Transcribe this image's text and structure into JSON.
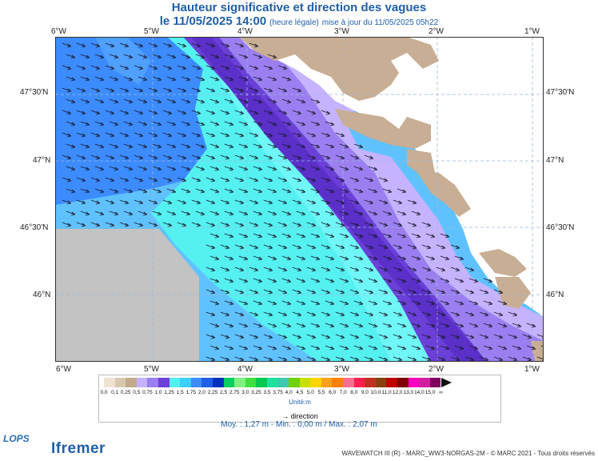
{
  "header": {
    "title": "Hauteur significative et direction des vagues",
    "date": "le 11/05/2025 14:00",
    "legal": "(heure légale)",
    "update": "mise à jour du 11/05/2025 05h22"
  },
  "axes": {
    "lon_labels": [
      "6°W",
      "5°W",
      "4°W",
      "3°W",
      "2°W",
      "1°W"
    ],
    "lat_labels": [
      "47°30'N",
      "47°N",
      "46°30'N",
      "46°N"
    ]
  },
  "map_data": {
    "type": "heatmap",
    "variable": "significant wave height",
    "lon_range": [
      -6,
      -1
    ],
    "lat_range": [
      45.5,
      47.85
    ],
    "min_m": 0.0,
    "max_m": 2.07,
    "mean_m": 1.27,
    "wave_direction": "from west-northwest",
    "bands_offshore_to_coast": [
      "1,75-2,0",
      "1,5-1,75",
      "1,25-1,5",
      "1,0-1,25",
      "0,75-1,0",
      "0,5-0,75"
    ],
    "no_data_region": "south-west corner"
  },
  "legend": {
    "stops": [
      "0,0",
      "0,1",
      "0,25",
      "0,5",
      "0,75",
      "1,0",
      "1,25",
      "1,5",
      "1,75",
      "2,0",
      "2,25",
      "2,5",
      "2,75",
      "3,0",
      "3,25",
      "3,5",
      "3,75",
      "4,0",
      "4,5",
      "5,0",
      "5,5",
      "6,0",
      "7,0",
      "8,0",
      "9,0",
      "10,0",
      "11,0",
      "12,0",
      "13,0",
      "14,0",
      "15,0",
      "∞"
    ],
    "colors": [
      "#efe4d2",
      "#d9c8b0",
      "#c3aa8c",
      "#c6b3ff",
      "#9b7ff0",
      "#6a40d8",
      "#55f0f0",
      "#3ad0ff",
      "#3c8cff",
      "#2060e8",
      "#0032c0",
      "#00d060",
      "#80f080",
      "#40e040",
      "#00c850",
      "#20e0a0",
      "#40c8b0",
      "#70d000",
      "#c8e000",
      "#ffd400",
      "#ffa020",
      "#ff8000",
      "#ff7090",
      "#ff2050",
      "#c03020",
      "#8b4010",
      "#c00000",
      "#800000",
      "#ff00c0",
      "#d020a0",
      "#800060"
    ],
    "unit": "Unité:m",
    "direction_label": "direction"
  },
  "stats": "Moy. : 1,27 m   -   Min. : 0,00 m / Max. : 2,07 m",
  "footer": "WAVEWATCH III (R) - MARC_WW3-NORGAS-2M - © MARC 2021 - Tous droits réservés",
  "logos": {
    "lops": "LOPS",
    "ifremer": "Ifremer"
  }
}
